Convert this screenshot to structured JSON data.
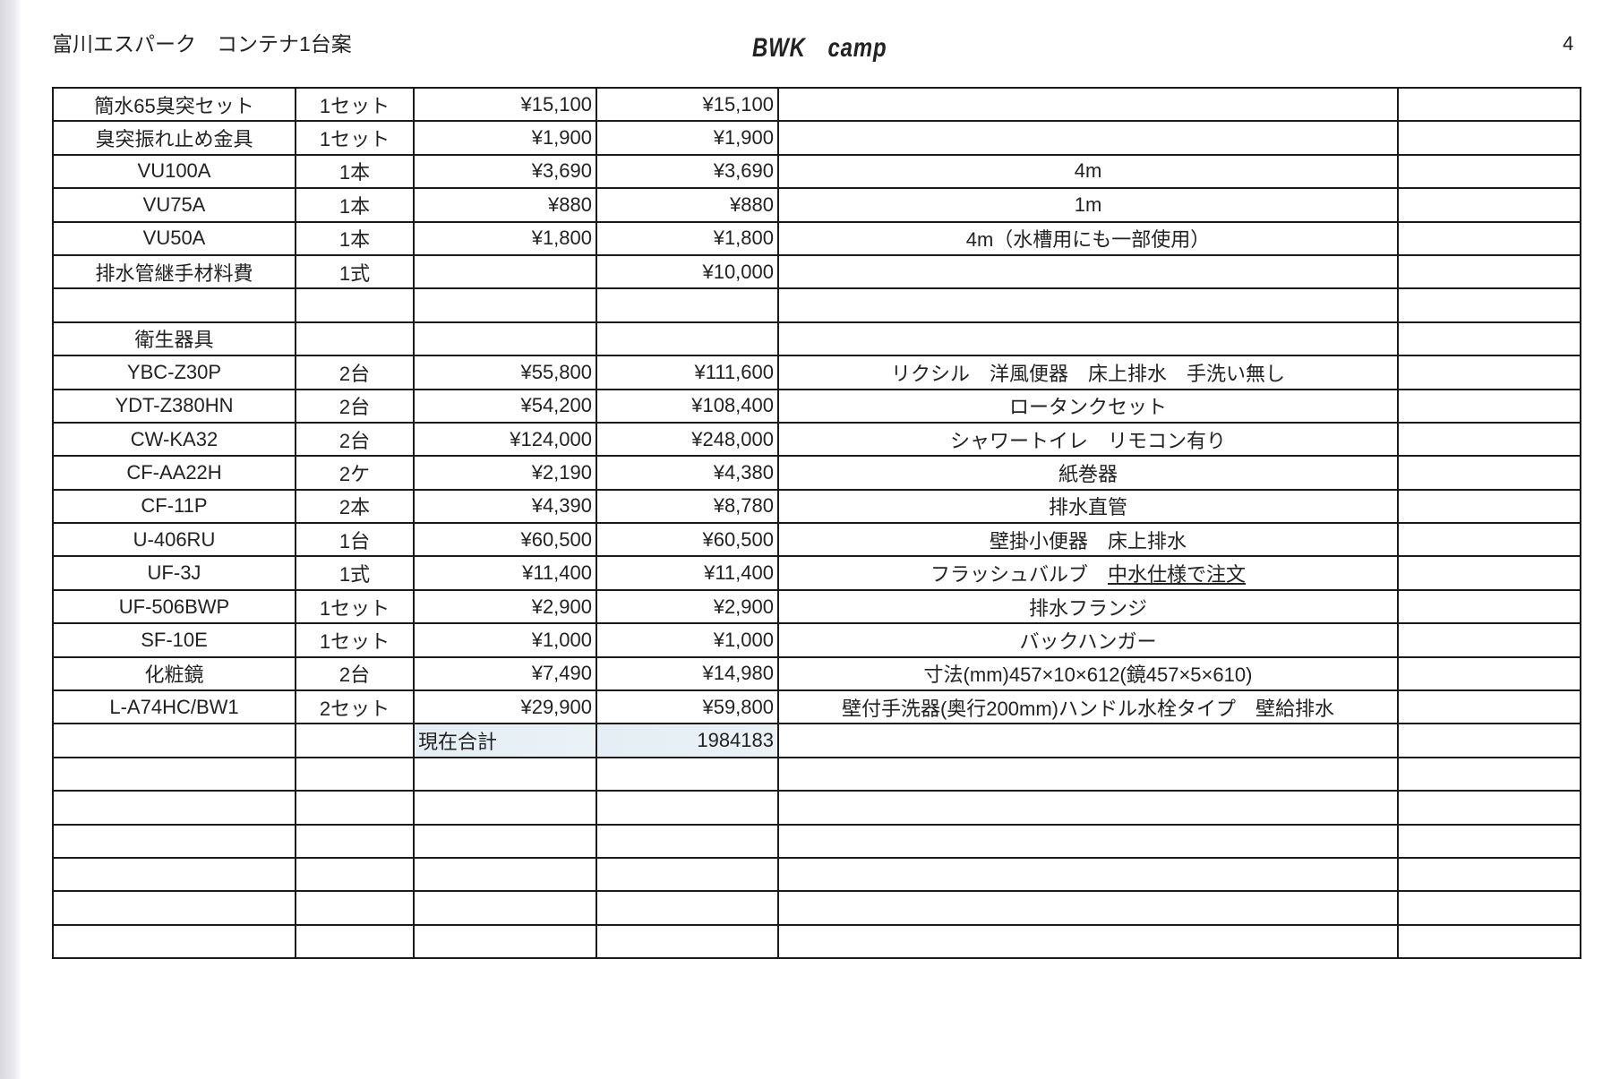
{
  "header": {
    "left": "富川エスパーク　コンテナ1台案",
    "center": "BWK　camp",
    "page_number": "4"
  },
  "table": {
    "rows": [
      {
        "name": "簡水65臭突セット",
        "qty": "1セット",
        "unit_price": "¥15,100",
        "amount": "¥15,100",
        "note": "",
        "extra": ""
      },
      {
        "name": "臭突振れ止め金具",
        "qty": "1セット",
        "unit_price": "¥1,900",
        "amount": "¥1,900",
        "note": "",
        "extra": ""
      },
      {
        "name": "VU100A",
        "qty": "1本",
        "unit_price": "¥3,690",
        "amount": "¥3,690",
        "note": "4m",
        "extra": ""
      },
      {
        "name": "VU75A",
        "qty": "1本",
        "unit_price": "¥880",
        "amount": "¥880",
        "note": "1m",
        "extra": ""
      },
      {
        "name": "VU50A",
        "qty": "1本",
        "unit_price": "¥1,800",
        "amount": "¥1,800",
        "note": "4m（水槽用にも一部使用）",
        "extra": ""
      },
      {
        "name": "排水管継手材料費",
        "qty": "1式",
        "unit_price": "",
        "amount": "¥10,000",
        "note": "",
        "extra": ""
      },
      {
        "name": "",
        "qty": "",
        "unit_price": "",
        "amount": "",
        "note": "",
        "extra": ""
      },
      {
        "name": "衛生器具",
        "qty": "",
        "unit_price": "",
        "amount": "",
        "note": "",
        "extra": ""
      },
      {
        "name": "YBC-Z30P",
        "qty": "2台",
        "unit_price": "¥55,800",
        "amount": "¥111,600",
        "note": "リクシル　洋風便器　床上排水　手洗い無し",
        "extra": ""
      },
      {
        "name": "YDT-Z380HN",
        "qty": "2台",
        "unit_price": "¥54,200",
        "amount": "¥108,400",
        "note": "ロータンクセット",
        "extra": ""
      },
      {
        "name": "CW-KA32",
        "qty": "2台",
        "unit_price": "¥124,000",
        "amount": "¥248,000",
        "note": "シャワートイレ　リモコン有り",
        "extra": ""
      },
      {
        "name": "CF-AA22H",
        "qty": "2ケ",
        "unit_price": "¥2,190",
        "amount": "¥4,380",
        "note": "紙巻器",
        "extra": ""
      },
      {
        "name": "CF-11P",
        "qty": "2本",
        "unit_price": "¥4,390",
        "amount": "¥8,780",
        "note": "排水直管",
        "extra": ""
      },
      {
        "name": "U-406RU",
        "qty": "1台",
        "unit_price": "¥60,500",
        "amount": "¥60,500",
        "note": "壁掛小便器　床上排水",
        "extra": ""
      },
      {
        "name": "UF-3J",
        "qty": "1式",
        "unit_price": "¥11,400",
        "amount": "¥11,400",
        "note": "フラッシュバルブ　",
        "note_underlined": "中水仕様で注文",
        "extra": ""
      },
      {
        "name": "UF-506BWP",
        "qty": "1セット",
        "unit_price": "¥2,900",
        "amount": "¥2,900",
        "note": "排水フランジ",
        "extra": ""
      },
      {
        "name": "SF-10E",
        "qty": "1セット",
        "unit_price": "¥1,000",
        "amount": "¥1,000",
        "note": "バックハンガー",
        "extra": ""
      },
      {
        "name": "化粧鏡",
        "qty": "2台",
        "unit_price": "¥7,490",
        "amount": "¥14,980",
        "note": "寸法(mm)457×10×612(鏡457×5×610)",
        "extra": ""
      },
      {
        "name": "L-A74HC/BW1",
        "qty": "2セット",
        "unit_price": "¥29,900",
        "amount": "¥59,800",
        "note": "壁付手洗器(奥行200mm)ハンドル水栓タイプ　壁給排水",
        "extra": ""
      },
      {
        "name": "",
        "qty": "",
        "unit_price": "現在合計",
        "amount": "1984183",
        "note": "",
        "extra": "",
        "total": true
      },
      {
        "name": "",
        "qty": "",
        "unit_price": "",
        "amount": "",
        "note": "",
        "extra": ""
      },
      {
        "name": "",
        "qty": "",
        "unit_price": "",
        "amount": "",
        "note": "",
        "extra": ""
      },
      {
        "name": "",
        "qty": "",
        "unit_price": "",
        "amount": "",
        "note": "",
        "extra": ""
      },
      {
        "name": "",
        "qty": "",
        "unit_price": "",
        "amount": "",
        "note": "",
        "extra": ""
      },
      {
        "name": "",
        "qty": "",
        "unit_price": "",
        "amount": "",
        "note": "",
        "extra": ""
      },
      {
        "name": "",
        "qty": "",
        "unit_price": "",
        "amount": "",
        "note": "",
        "extra": ""
      }
    ]
  }
}
